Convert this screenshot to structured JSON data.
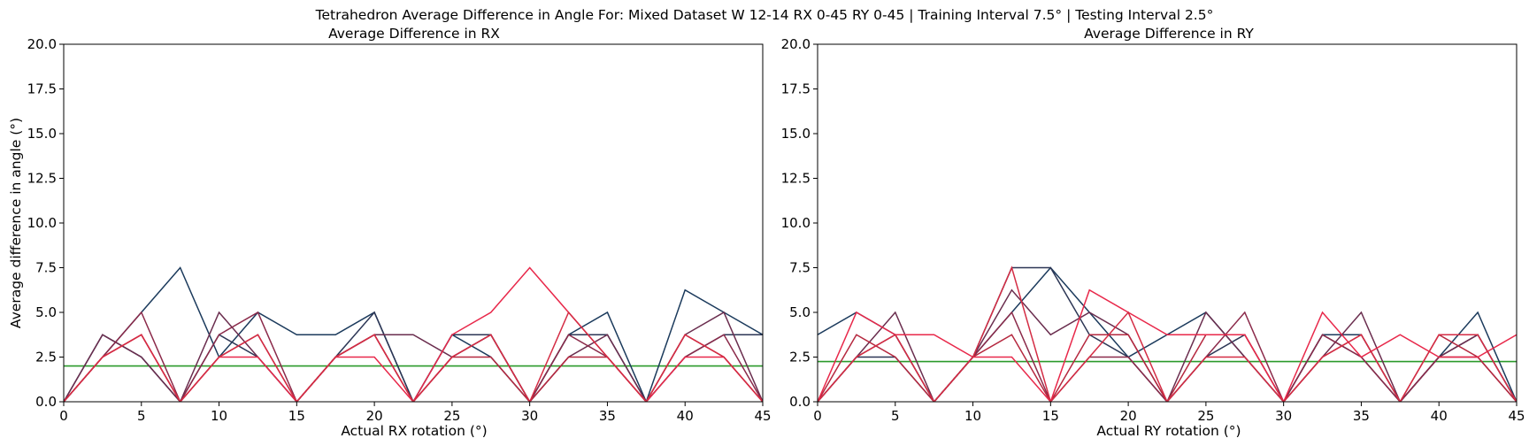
{
  "figure": {
    "suptitle": "Tetrahedron Average Difference in Angle For: Mixed Dataset W 12-14 RX 0-45 RY 0-45 | Training Interval 7.5° | Testing Interval 2.5°"
  },
  "chart_data": [
    {
      "type": "line",
      "title": "Average Difference in RX",
      "xlabel": "Actual RX rotation (°)",
      "ylabel": "Average difference in angle (°)",
      "xlim": [
        0,
        45
      ],
      "ylim": [
        0,
        20
      ],
      "xticks": [
        "0",
        "5",
        "10",
        "15",
        "20",
        "25",
        "30",
        "35",
        "40",
        "45"
      ],
      "yticks": [
        "0.0",
        "2.5",
        "5.0",
        "7.5",
        "10.0",
        "12.5",
        "15.0",
        "17.5",
        "20.0"
      ],
      "grid": false,
      "x": [
        0,
        2.5,
        5,
        7.5,
        10,
        12.5,
        15,
        17.5,
        20,
        22.5,
        25,
        27.5,
        30,
        32.5,
        35,
        37.5,
        40,
        42.5,
        45
      ],
      "reference_line": {
        "y": 2.0,
        "color": "#2a9a2a"
      },
      "series": [
        {
          "color": "#1b3a5c",
          "values": [
            0,
            2.5,
            5,
            7.5,
            2.5,
            5,
            3.75,
            3.75,
            5,
            0,
            3.75,
            2.5,
            0,
            3.75,
            5,
            0,
            6.25,
            5,
            3.75
          ]
        },
        {
          "color": "#2c3655",
          "values": [
            0,
            3.75,
            2.5,
            0,
            3.75,
            2.5,
            0,
            2.5,
            5,
            0,
            3.75,
            3.75,
            0,
            3.75,
            3.75,
            0,
            2.5,
            3.75,
            3.75
          ]
        },
        {
          "color": "#6a2d4e",
          "values": [
            0,
            3.75,
            2.5,
            0,
            5,
            2.5,
            0,
            2.5,
            3.75,
            3.75,
            2.5,
            3.75,
            0,
            2.5,
            3.75,
            0,
            3.75,
            5,
            0
          ]
        },
        {
          "color": "#8b2a4a",
          "values": [
            0,
            2.5,
            5,
            0,
            3.75,
            5,
            0,
            2.5,
            3.75,
            0,
            2.5,
            3.75,
            0,
            3.75,
            2.5,
            0,
            2.5,
            3.75,
            0
          ]
        },
        {
          "color": "#b5283f",
          "values": [
            0,
            2.5,
            3.75,
            0,
            2.5,
            3.75,
            0,
            2.5,
            3.75,
            0,
            2.5,
            2.5,
            0,
            2.5,
            2.5,
            0,
            3.75,
            2.5,
            0
          ]
        },
        {
          "color": "#e8284a",
          "values": [
            0,
            2.5,
            3.75,
            0,
            2.5,
            2.5,
            0,
            2.5,
            2.5,
            0,
            3.75,
            5,
            7.5,
            5,
            2.5,
            0,
            2.5,
            2.5,
            0
          ]
        },
        {
          "color": "#d42c44",
          "values": [
            0,
            2.5,
            3.75,
            0,
            2.5,
            3.75,
            0,
            2.5,
            3.75,
            0,
            2.5,
            3.75,
            0,
            5,
            2.5,
            0,
            3.75,
            2.5,
            0
          ]
        }
      ]
    },
    {
      "type": "line",
      "title": "Average Difference in RY",
      "xlabel": "Actual RY rotation (°)",
      "ylabel": "",
      "xlim": [
        0,
        45
      ],
      "ylim": [
        0,
        20
      ],
      "xticks": [
        "0",
        "5",
        "10",
        "15",
        "20",
        "25",
        "30",
        "35",
        "40",
        "45"
      ],
      "yticks": [
        "0.0",
        "2.5",
        "5.0",
        "7.5",
        "10.0",
        "12.5",
        "15.0",
        "17.5",
        "20.0"
      ],
      "grid": false,
      "x": [
        0,
        2.5,
        5,
        7.5,
        10,
        12.5,
        15,
        17.5,
        20,
        22.5,
        25,
        27.5,
        30,
        32.5,
        35,
        37.5,
        40,
        42.5,
        45
      ],
      "reference_line": {
        "y": 2.25,
        "color": "#2a9a2a"
      },
      "series": [
        {
          "color": "#1b3a5c",
          "values": [
            3.75,
            5,
            3.75,
            0,
            2.5,
            5,
            7.5,
            5,
            2.5,
            3.75,
            5,
            2.5,
            0,
            3.75,
            3.75,
            0,
            2.5,
            5,
            0
          ]
        },
        {
          "color": "#2c3655",
          "values": [
            0,
            2.5,
            2.5,
            0,
            2.5,
            7.5,
            7.5,
            3.75,
            2.5,
            0,
            2.5,
            3.75,
            0,
            3.75,
            2.5,
            0,
            2.5,
            3.75,
            0
          ]
        },
        {
          "color": "#6a2d4e",
          "values": [
            0,
            2.5,
            5,
            0,
            2.5,
            6.25,
            3.75,
            5,
            3.75,
            0,
            5,
            2.5,
            0,
            2.5,
            5,
            0,
            2.5,
            3.75,
            0
          ]
        },
        {
          "color": "#8b2a4a",
          "values": [
            0,
            2.5,
            3.75,
            0,
            2.5,
            5,
            0,
            2.5,
            2.5,
            0,
            2.5,
            5,
            0,
            3.75,
            2.5,
            0,
            2.5,
            2.5,
            0
          ]
        },
        {
          "color": "#b5283f",
          "values": [
            0,
            3.75,
            2.5,
            0,
            2.5,
            3.75,
            0,
            3.75,
            3.75,
            0,
            3.75,
            3.75,
            0,
            2.5,
            3.75,
            0,
            3.75,
            2.5,
            0
          ]
        },
        {
          "color": "#e8284a",
          "values": [
            0,
            5,
            3.75,
            3.75,
            2.5,
            2.5,
            0,
            6.25,
            5,
            3.75,
            3.75,
            3.75,
            0,
            5,
            2.5,
            3.75,
            2.5,
            2.5,
            3.75
          ]
        },
        {
          "color": "#d42c44",
          "values": [
            0,
            2.5,
            3.75,
            0,
            2.5,
            7.5,
            0,
            2.5,
            5,
            0,
            2.5,
            2.5,
            0,
            2.5,
            3.75,
            0,
            3.75,
            3.75,
            0
          ]
        }
      ]
    }
  ]
}
